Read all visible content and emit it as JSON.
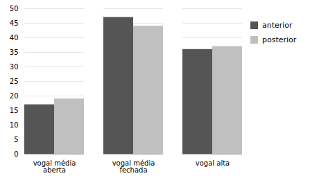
{
  "chart_data": {
    "type": "bar",
    "categories": [
      "vogal média\naberta",
      "vogal média\nfechada",
      "vogal alta"
    ],
    "series": [
      {
        "name": "anterior",
        "color": "#555555",
        "values": [
          17,
          47,
          36
        ]
      },
      {
        "name": "posterior",
        "color": "#c0c0c0",
        "values": [
          19,
          44,
          37
        ]
      }
    ],
    "ylim": [
      0,
      50
    ],
    "yticks": [
      0,
      5,
      10,
      15,
      20,
      25,
      30,
      35,
      40,
      45,
      50
    ],
    "grid": true,
    "legend": "right"
  }
}
